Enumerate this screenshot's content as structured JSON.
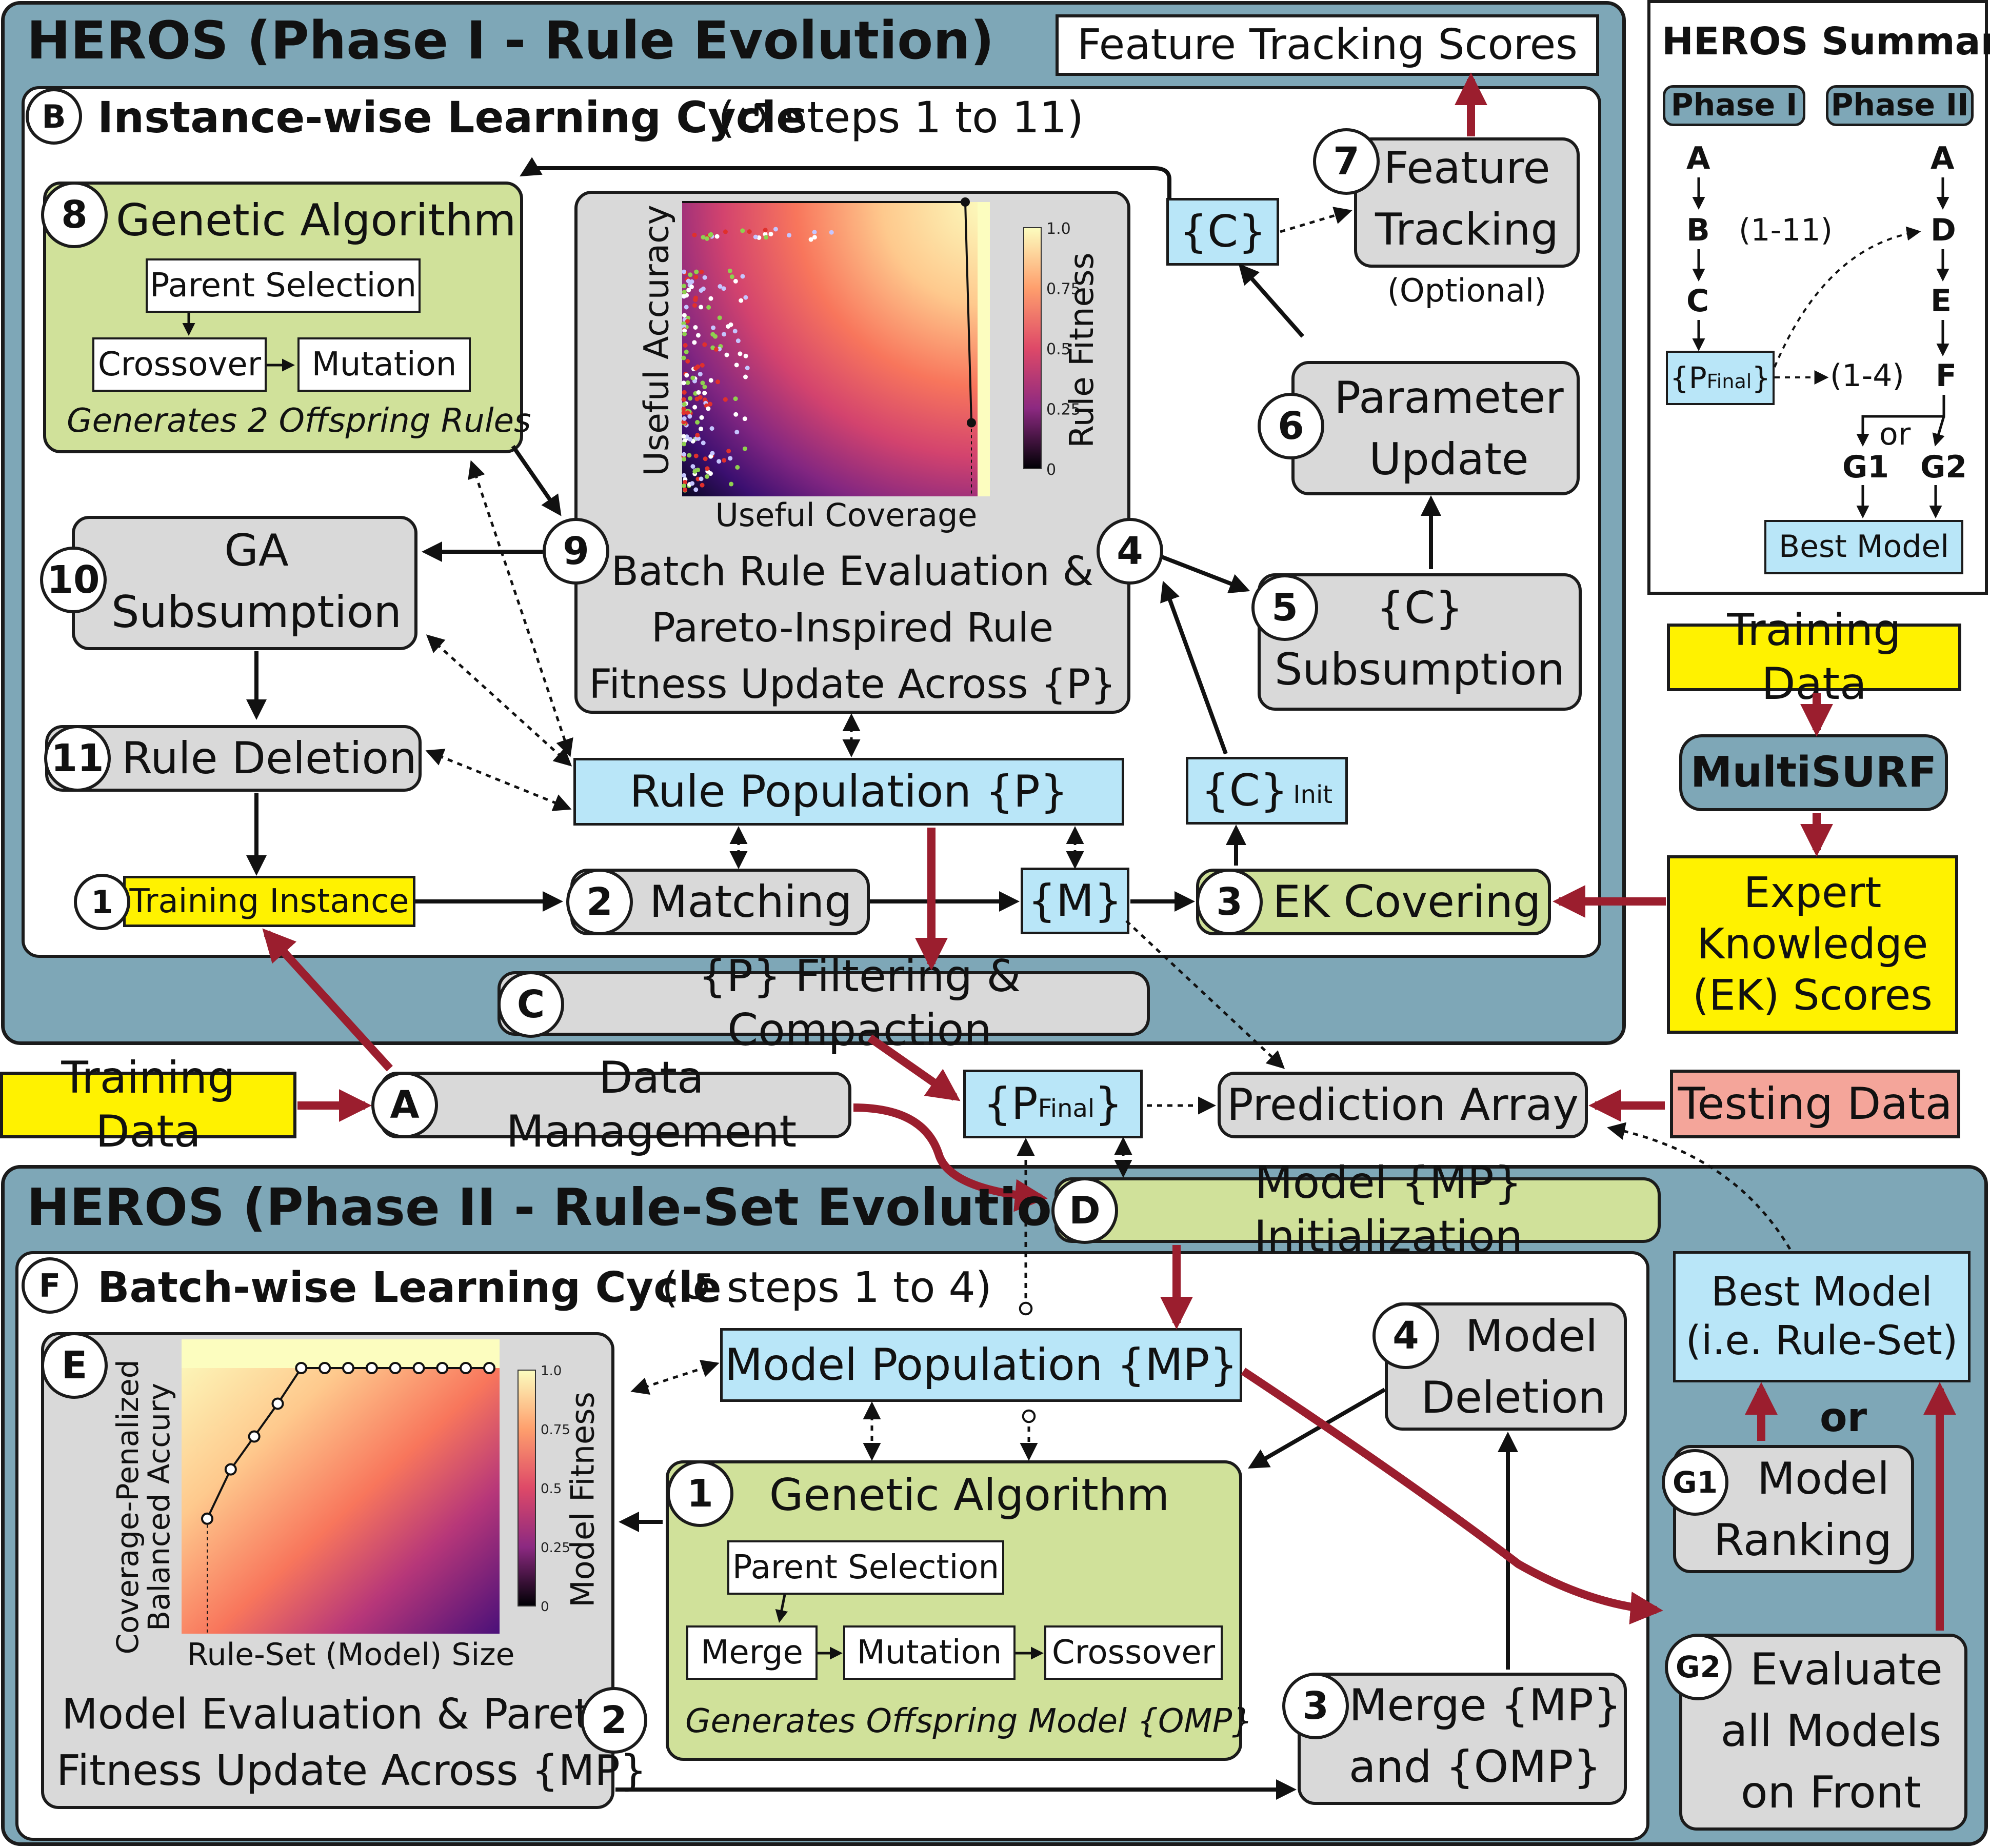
{
  "phase1": {
    "title": "HEROS (Phase I - Rule Evolution)",
    "cycle_letter": "B",
    "cycle_title": "Instance-wise Learning Cycle",
    "cycle_steps": "(↺ steps 1 to 11)",
    "feature_tracking_scores": "Feature Tracking Scores",
    "ga": {
      "num": "8",
      "title": "Genetic Algorithm",
      "parent": "Parent Selection",
      "crossover": "Crossover",
      "mutation": "Mutation",
      "note": "Generates 2 Offspring Rules"
    },
    "eval": {
      "num": "9",
      "num2": "4",
      "line1": "Batch Rule Evaluation &",
      "line2": "Pareto-Inspired Rule",
      "line3": "Fitness Update Across {P}"
    },
    "feature_tracking": {
      "num": "7",
      "line1": "Feature",
      "line2": "Tracking",
      "optional": "(Optional)"
    },
    "c_set": "{C}",
    "param_update": {
      "num": "6",
      "line1": "Parameter",
      "line2": "Update"
    },
    "c_subsumption": {
      "num": "5",
      "line1": "{C}",
      "line2": "Subsumption"
    },
    "ga_subsumption": {
      "num": "10",
      "line1": "GA",
      "line2": "Subsumption"
    },
    "rule_deletion": {
      "num": "11",
      "label": "Rule Deletion"
    },
    "rule_population": "Rule Population {P}",
    "c_init": "{C}",
    "c_init_sub": "Init",
    "training_instance": {
      "num": "1",
      "label": "Training Instance"
    },
    "matching": {
      "num": "2",
      "label": "Matching"
    },
    "m_set": "{M}",
    "ek_covering": {
      "num": "3",
      "label": "EK Covering"
    }
  },
  "filtering": {
    "letter": "C",
    "label": "{P} Filtering & Compaction"
  },
  "data_management": {
    "letter": "A",
    "label": "Data Management"
  },
  "training_data_left": "Training Data",
  "p_final": "{P",
  "p_final_sub": "Final",
  "p_final_close": "}",
  "prediction_array": "Prediction Array",
  "testing_data": "Testing Data",
  "summary": {
    "title": "HEROS Summary",
    "phase1": "Phase I",
    "phase2": "Phase II",
    "a1": "A",
    "b1": "B",
    "b_steps": "(1-11)",
    "c1": "C",
    "a2": "A",
    "d2": "D",
    "e2": "E",
    "f2": "F",
    "f_steps": "(1-4)",
    "pfinal": "{P",
    "pfinal_sub": "Final",
    "pfinal_close": "}",
    "or": "or",
    "g1": "G1",
    "g2": "G2",
    "best": "Best Model"
  },
  "right": {
    "training_data": "Training Data",
    "multisurf": "MultiSURF",
    "ek_line1": "Expert",
    "ek_line2": "Knowledge",
    "ek_line3": "(EK) Scores"
  },
  "phase2": {
    "title": "HEROS (Phase II - Rule-Set Evolution)",
    "init": {
      "letter": "D",
      "label": "Model {MP} Initialization"
    },
    "cycle_letter": "F",
    "cycle_title": "Batch-wise Learning Cycle",
    "cycle_steps": "(↺ steps 1 to 4)",
    "model_population": "Model Population {MP}",
    "model_deletion": {
      "num": "4",
      "line1": "Model",
      "line2": "Deletion"
    },
    "ga": {
      "num": "1",
      "title": "Genetic Algorithm",
      "parent": "Parent Selection",
      "merge": "Merge",
      "mutation": "Mutation",
      "crossover": "Crossover",
      "note": "Generates Offspring Model {OMP}"
    },
    "eval": {
      "letter": "E",
      "num": "2",
      "line1": "Model Evaluation & Pareto",
      "line2": "Fitness Update Across {MP}"
    },
    "merge": {
      "num": "3",
      "line1": "Merge {MP}",
      "line2": "and {OMP}"
    },
    "best_model": {
      "line1": "Best Model",
      "line2": "(i.e. Rule-Set)"
    },
    "or": "or",
    "g1": {
      "num": "G1",
      "line1": "Model",
      "line2": "Ranking"
    },
    "g2": {
      "num": "G2",
      "line1": "Evaluate",
      "line2": "all Models",
      "line3": "on Front"
    }
  },
  "chart_data": [
    {
      "type": "scatter",
      "title": "",
      "xlabel": "Useful Coverage",
      "ylabel": "Useful Accuracy",
      "colorbar_label": "Rule Fitness",
      "colorbar_ticks": [
        "1.0",
        "0.75",
        "0.5",
        "0.25",
        "0"
      ],
      "xlim": [
        0,
        1
      ],
      "ylim": [
        0,
        1
      ],
      "pareto_front": {
        "x": [
          0.0,
          0.92,
          0.94
        ],
        "y": [
          1.0,
          1.0,
          0.25
        ]
      }
    },
    {
      "type": "scatter",
      "title": "",
      "xlabel": "Rule-Set (Model) Size",
      "ylabel": "Coverage-Penalized Balanced Accury",
      "colorbar_label": "Model Fitness",
      "colorbar_ticks": [
        "1.0",
        "0.75",
        "0.5",
        "0.25",
        "0"
      ],
      "pareto_front": {
        "x": [
          1,
          2,
          3,
          4,
          5,
          6,
          7,
          8,
          9,
          10,
          11,
          12,
          13
        ],
        "y": [
          0.42,
          0.6,
          0.72,
          0.84,
          0.97,
          0.97,
          0.97,
          0.97,
          0.97,
          0.97,
          0.97,
          0.97,
          0.97
        ]
      }
    }
  ]
}
